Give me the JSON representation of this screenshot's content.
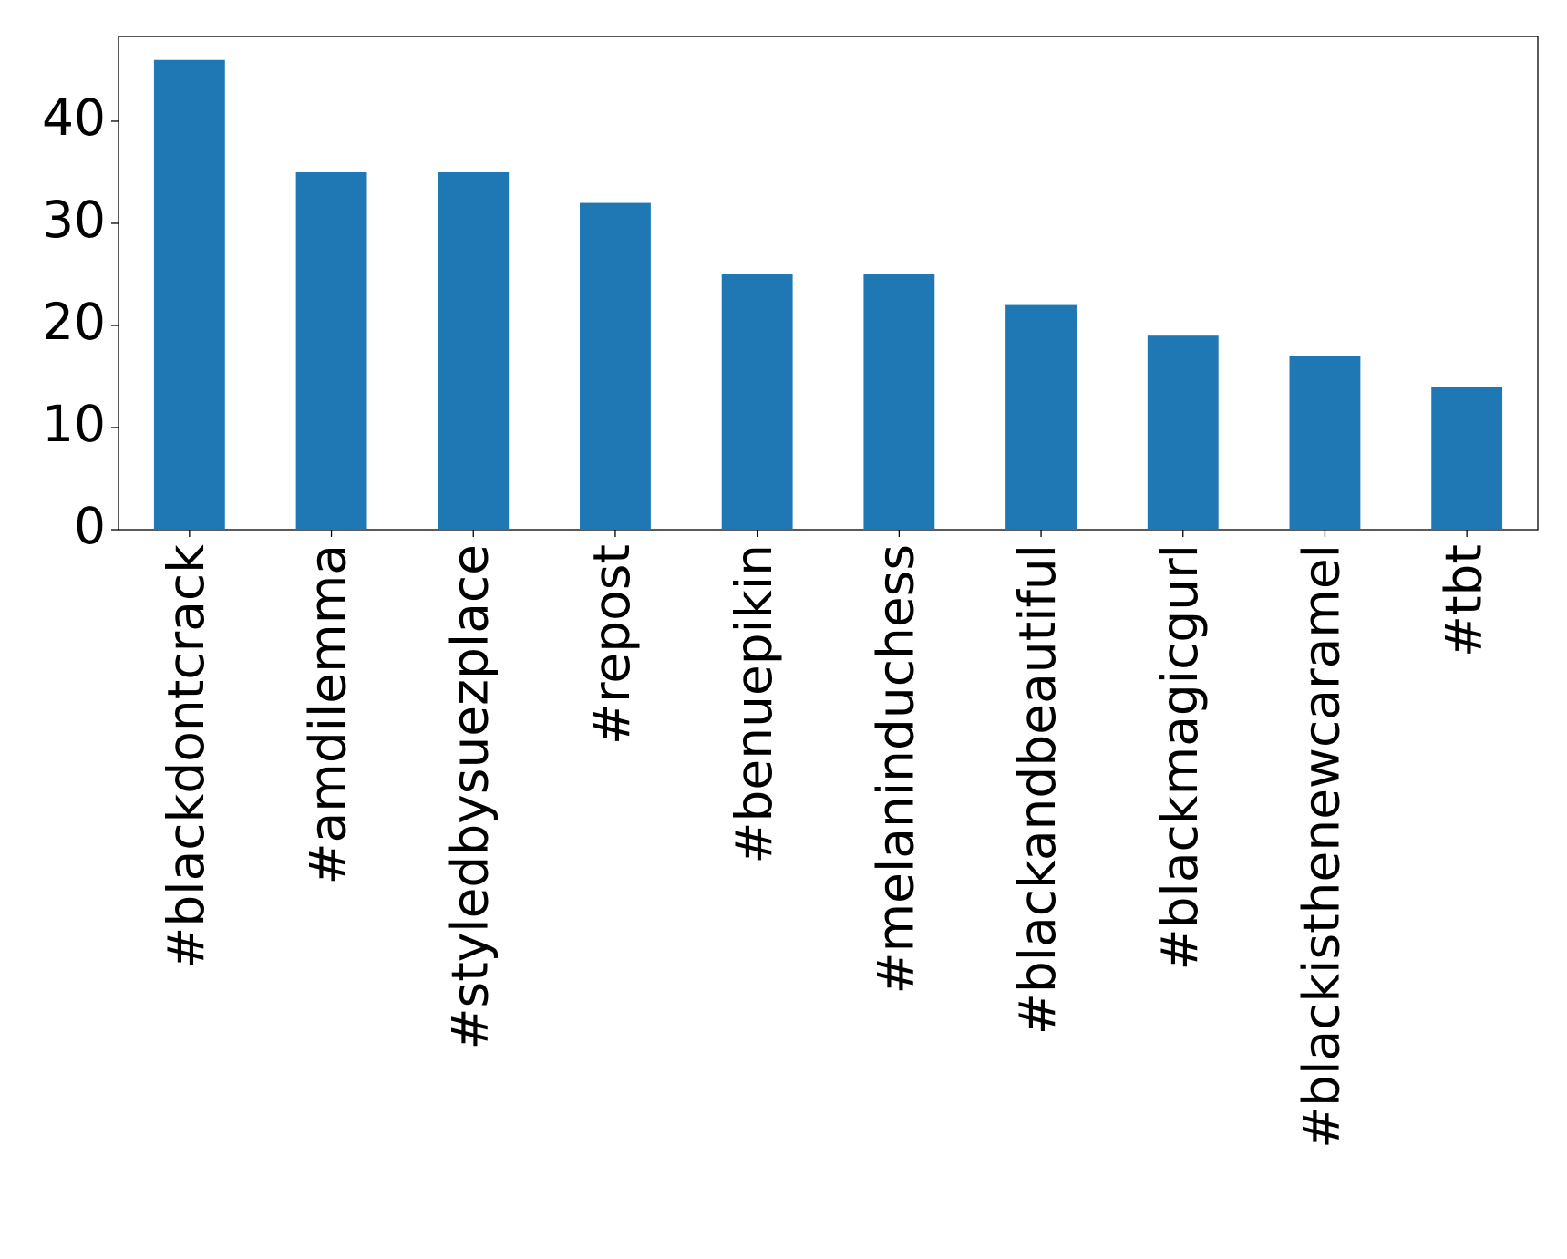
{
  "chart_data": {
    "type": "bar",
    "categories": [
      "#blackdontcrack",
      "#amdilemma",
      "#styledbysuezplace",
      "#repost",
      "#benuepikin",
      "#melaninduchess",
      "#blackandbeautiful",
      "#blackmagicgurl",
      "#blackisthenewcaramel",
      "#tbt"
    ],
    "values": [
      46,
      35,
      35,
      32,
      25,
      25,
      22,
      19,
      17,
      14
    ],
    "color": "#1f77b4",
    "ylim": [
      0,
      48.3
    ],
    "yticks": [
      0,
      10,
      20,
      30,
      40
    ],
    "grid": false
  }
}
